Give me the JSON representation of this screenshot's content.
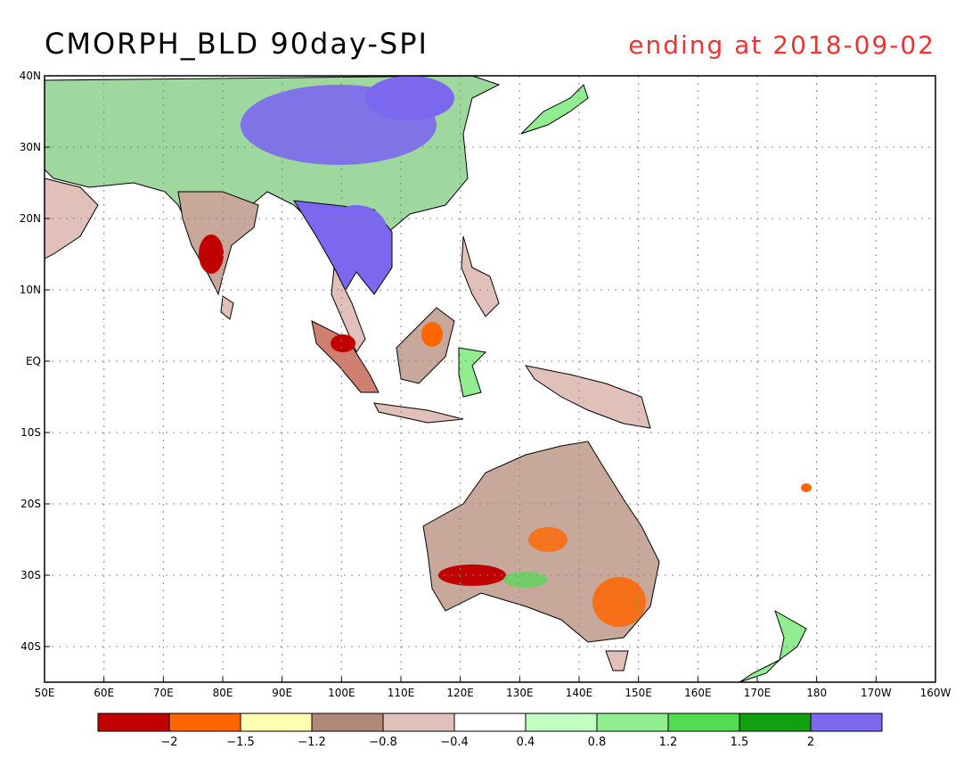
{
  "title": "CMORPH_BLD 90day-SPI",
  "subtitle": "ending at 2018-09-02",
  "map": {
    "lat_labels": [
      "40N",
      "30N",
      "20N",
      "10N",
      "EQ",
      "10S",
      "20S",
      "30S",
      "40S"
    ],
    "lat_values": [
      40,
      30,
      20,
      10,
      0,
      -10,
      -20,
      -30,
      -40
    ],
    "lon_labels": [
      "50E",
      "60E",
      "70E",
      "80E",
      "90E",
      "100E",
      "110E",
      "120E",
      "130E",
      "140E",
      "150E",
      "160E",
      "170E",
      "180",
      "170W",
      "160W"
    ],
    "lon_values": [
      50,
      60,
      70,
      80,
      90,
      100,
      110,
      120,
      130,
      140,
      150,
      160,
      170,
      180,
      190,
      200
    ],
    "lat_range": [
      -45,
      40
    ],
    "lon_range": [
      50,
      200
    ],
    "grid": true
  },
  "legend": {
    "colors": [
      "#c00000",
      "#ff6600",
      "#ffffb0",
      "#b08878",
      "#e0c0b8",
      "#ffffff",
      "#c0ffc0",
      "#90ee90",
      "#50dd50",
      "#10a010",
      "#7b68ee"
    ],
    "labels": [
      "-2",
      "-1.5",
      "-1.2",
      "-0.8",
      "-0.4",
      "0.4",
      "0.8",
      "1.2",
      "1.5",
      "2"
    ]
  }
}
